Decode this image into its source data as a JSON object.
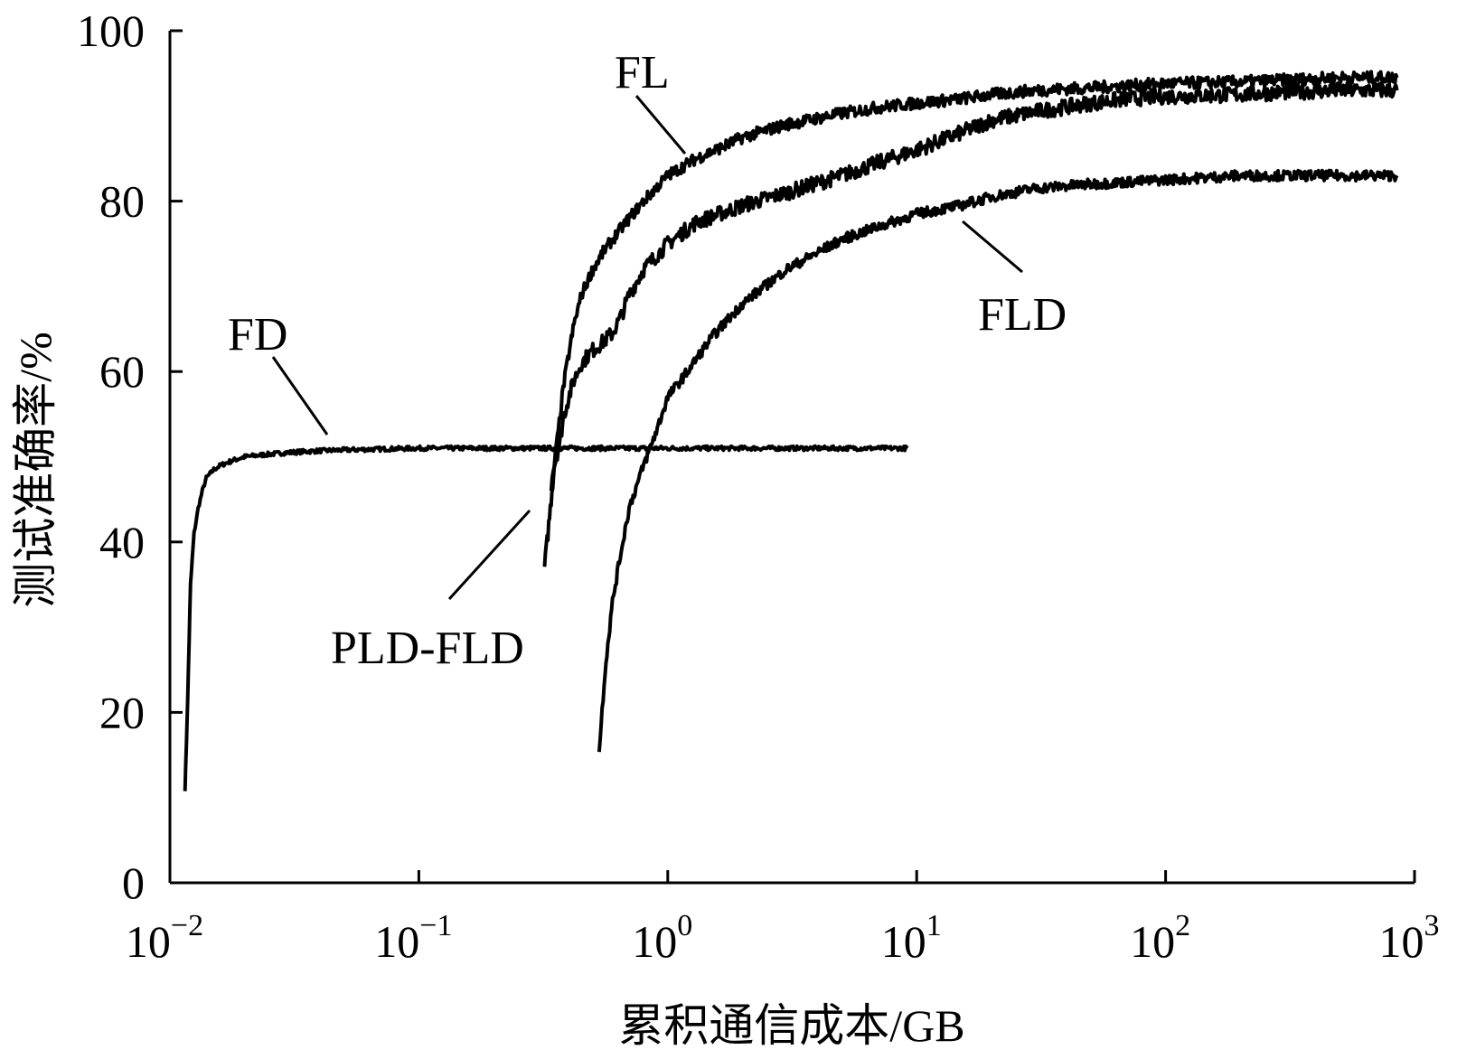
{
  "chart_data": {
    "type": "line",
    "title": "",
    "xlabel": "累积通信成本/GB",
    "ylabel": "测试准确率/%",
    "x_scale": "log",
    "xlim": [
      0.01,
      1000
    ],
    "ylim": [
      0,
      100
    ],
    "grid": false,
    "x_ticks": [
      {
        "base": "10",
        "exp": "−2",
        "value": 0.01
      },
      {
        "base": "10",
        "exp": "−1",
        "value": 0.1
      },
      {
        "base": "10",
        "exp": "0",
        "value": 1
      },
      {
        "base": "10",
        "exp": "1",
        "value": 10
      },
      {
        "base": "10",
        "exp": "2",
        "value": 100
      },
      {
        "base": "10",
        "exp": "3",
        "value": 1000
      }
    ],
    "y_ticks": [
      "0",
      "20",
      "40",
      "60",
      "80",
      "100"
    ],
    "series": [
      {
        "name": "FD",
        "x": [
          0.0115,
          0.0118,
          0.0121,
          0.0125,
          0.013,
          0.0135,
          0.014,
          0.015,
          0.016,
          0.018,
          0.02,
          0.025,
          0.03,
          0.04,
          0.05,
          0.07,
          0.1,
          0.15,
          0.2,
          0.3,
          0.5,
          1,
          2,
          3,
          5,
          7,
          9.2
        ],
        "y": [
          11,
          22,
          35,
          41,
          44,
          46,
          47.5,
          48.5,
          49,
          49.6,
          50,
          50.3,
          50.5,
          50.7,
          50.8,
          50.9,
          51,
          51,
          51,
          51,
          51,
          51,
          51,
          51,
          51,
          51,
          51
        ]
      },
      {
        "name": "PLD-FLD",
        "x": [
          0.32,
          0.33,
          0.34,
          0.35,
          0.37,
          0.38,
          0.4,
          0.42,
          0.45,
          0.5,
          0.55,
          0.6,
          0.65,
          0.7,
          0.8,
          1,
          1.3,
          2,
          3,
          5,
          7,
          10,
          15,
          20,
          30,
          50,
          70,
          100,
          200,
          300,
          500,
          850
        ],
        "y": [
          37,
          41,
          45,
          49,
          52,
          54.5,
          57,
          59,
          61,
          62.5,
          63.5,
          64.5,
          66.5,
          69,
          72,
          75,
          77.5,
          79.5,
          81,
          83,
          84.5,
          86,
          88,
          89.5,
          90.5,
          91.5,
          92,
          92.3,
          92.5,
          92.8,
          93,
          93
        ]
      },
      {
        "name": "FL",
        "x": [
          0.34,
          0.36,
          0.38,
          0.4,
          0.42,
          0.45,
          0.5,
          0.55,
          0.6,
          0.7,
          0.8,
          1,
          1.3,
          1.7,
          2,
          3,
          5,
          7,
          10,
          15,
          20,
          30,
          50,
          100,
          200,
          500,
          850
        ],
        "y": [
          46,
          52,
          58,
          62,
          65.5,
          69,
          72,
          74,
          75.5,
          78,
          80,
          83,
          85,
          86.5,
          87.5,
          89,
          90.3,
          91,
          91.5,
          92,
          92.5,
          93,
          93.3,
          93.8,
          94,
          94.5,
          94.5
        ]
      },
      {
        "name": "FLD",
        "x": [
          0.53,
          0.56,
          0.6,
          0.65,
          0.7,
          0.8,
          0.9,
          1,
          1.2,
          1.5,
          2,
          3,
          5,
          7,
          10,
          15,
          20,
          30,
          50,
          100,
          200,
          500,
          850
        ],
        "y": [
          15.5,
          25,
          33,
          39,
          44,
          49,
          53,
          57,
          60,
          64,
          68,
          72,
          75.5,
          77,
          78.5,
          79.5,
          80.5,
          81.5,
          82,
          82.5,
          83,
          83,
          83
        ]
      }
    ],
    "series_labels": [
      "FD",
      "PLD-FLD",
      "FL",
      "FLD"
    ]
  }
}
